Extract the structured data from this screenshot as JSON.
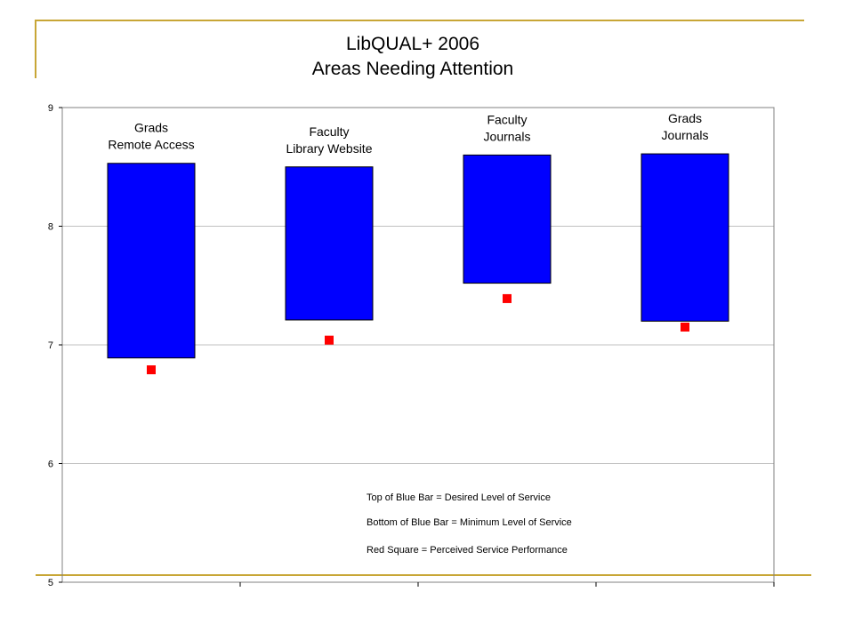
{
  "colors": {
    "bar": "#0000ff",
    "marker": "#ff0000",
    "accent_line": "#c8a636",
    "grid": "#c0c0c0"
  },
  "chart_data": {
    "type": "bar",
    "title": "LibQUAL+ 2006",
    "subtitle": "Areas Needing Attention",
    "categories": [
      {
        "line1": "Grads",
        "line2": "Remote Access"
      },
      {
        "line1": "Faculty",
        "line2": "Library Website"
      },
      {
        "line1": "Faculty",
        "line2": "Journals"
      },
      {
        "line1": "Grads",
        "line2": "Journals"
      }
    ],
    "series": [
      {
        "name": "Desired Level of Service",
        "values": [
          8.53,
          8.5,
          8.6,
          8.61
        ]
      },
      {
        "name": "Minimum Level of Service",
        "values": [
          6.89,
          7.21,
          7.52,
          7.2
        ]
      },
      {
        "name": "Perceived Service Performance",
        "values": [
          6.79,
          7.04,
          7.39,
          7.15
        ]
      }
    ],
    "ylim": [
      5,
      9
    ],
    "yticks": [
      "5",
      "6",
      "7",
      "8",
      "9"
    ],
    "grid": true,
    "legend_notes": [
      "Top of Blue Bar = Desired Level of Service",
      "Bottom of Blue Bar = Minimum Level of Service",
      "Red Square = Perceived Service Performance"
    ]
  }
}
